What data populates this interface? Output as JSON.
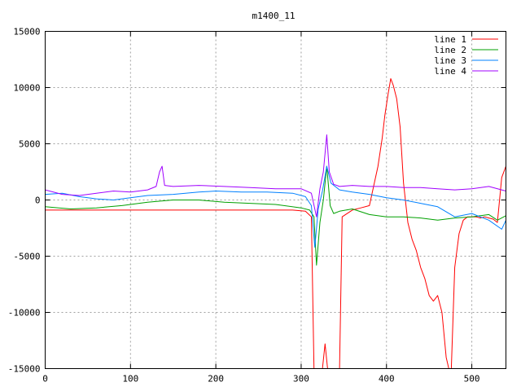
{
  "chart_data": {
    "type": "line",
    "title": "m1400_11",
    "xlabel": "",
    "ylabel": "",
    "xlim": [
      0,
      540
    ],
    "ylim": [
      -15000,
      15000
    ],
    "xticks": [
      0,
      100,
      200,
      300,
      400,
      500
    ],
    "yticks": [
      -15000,
      -10000,
      -5000,
      0,
      5000,
      10000,
      15000
    ],
    "grid": true,
    "legend_position": "top-right",
    "series": [
      {
        "name": "line 1",
        "color": "#ff0000",
        "x": [
          0,
          50,
          100,
          150,
          200,
          250,
          290,
          305,
          312,
          315,
          318,
          322,
          325,
          328,
          331,
          335,
          340,
          345,
          348,
          352,
          360,
          370,
          380,
          390,
          395,
          398,
          402,
          405,
          408,
          412,
          416,
          420,
          425,
          430,
          435,
          440,
          445,
          450,
          455,
          460,
          465,
          470,
          473,
          476,
          480,
          485,
          490,
          495,
          500,
          505,
          510,
          515,
          520,
          525,
          530,
          535,
          540
        ],
        "y": [
          -900,
          -900,
          -900,
          -900,
          -900,
          -900,
          -900,
          -1000,
          -1500,
          -15000,
          -15000,
          -15000,
          -15000,
          -12800,
          -15000,
          -15000,
          -15000,
          -15000,
          -1500,
          -1300,
          -900,
          -700,
          -500,
          3000,
          5500,
          7500,
          9500,
          10800,
          10200,
          9000,
          6500,
          1500,
          -2000,
          -3500,
          -4500,
          -6000,
          -7000,
          -8500,
          -9000,
          -8500,
          -10000,
          -14000,
          -15000,
          -15000,
          -6000,
          -3000,
          -1800,
          -1500,
          -1500,
          -1500,
          -1600,
          -1500,
          -1600,
          -1700,
          -2000,
          2000,
          3000
        ]
      },
      {
        "name": "line 2",
        "color": "#00a000",
        "x": [
          0,
          30,
          60,
          90,
          120,
          150,
          180,
          210,
          240,
          270,
          300,
          310,
          315,
          318,
          322,
          326,
          330,
          334,
          338,
          345,
          360,
          380,
          400,
          420,
          440,
          460,
          480,
          500,
          520,
          530,
          540
        ],
        "y": [
          -600,
          -800,
          -700,
          -500,
          -200,
          0,
          0,
          -200,
          -300,
          -400,
          -700,
          -900,
          -1500,
          -5800,
          -2000,
          0,
          3000,
          -500,
          -1200,
          -1000,
          -800,
          -1300,
          -1500,
          -1500,
          -1600,
          -1800,
          -1600,
          -1500,
          -1300,
          -1800,
          -1400
        ]
      },
      {
        "name": "line 3",
        "color": "#0080ff",
        "x": [
          0,
          20,
          40,
          60,
          80,
          100,
          120,
          150,
          180,
          200,
          230,
          260,
          290,
          305,
          312,
          316,
          320,
          325,
          330,
          335,
          345,
          360,
          380,
          400,
          420,
          440,
          460,
          480,
          500,
          520,
          535,
          540
        ],
        "y": [
          500,
          600,
          300,
          100,
          0,
          200,
          400,
          500,
          700,
          800,
          700,
          700,
          600,
          300,
          -500,
          -4200,
          -800,
          800,
          3000,
          1500,
          900,
          700,
          500,
          200,
          0,
          -300,
          -600,
          -1500,
          -1200,
          -1800,
          -2600,
          -1800
        ]
      },
      {
        "name": "line 4",
        "color": "#a000ff",
        "x": [
          0,
          20,
          40,
          60,
          80,
          100,
          120,
          130,
          134,
          137,
          140,
          150,
          180,
          210,
          240,
          270,
          300,
          312,
          318,
          322,
          326,
          330,
          333,
          338,
          345,
          360,
          380,
          400,
          420,
          440,
          460,
          480,
          500,
          520,
          535,
          540
        ],
        "y": [
          900,
          500,
          400,
          600,
          800,
          700,
          900,
          1200,
          2500,
          3000,
          1300,
          1200,
          1300,
          1200,
          1100,
          1000,
          1000,
          600,
          -1500,
          1000,
          2500,
          5800,
          2500,
          1400,
          1200,
          1300,
          1200,
          1200,
          1100,
          1100,
          1000,
          900,
          1000,
          1200,
          900,
          800
        ]
      }
    ]
  }
}
